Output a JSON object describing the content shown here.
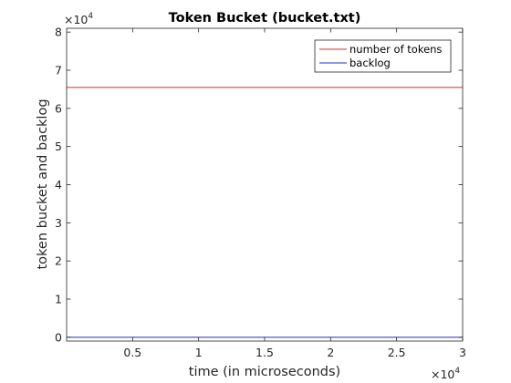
{
  "chart_data": {
    "type": "line",
    "title": "Token Bucket (bucket.txt)",
    "xlabel": "time (in microseconds)",
    "ylabel": "token bucket and backlog",
    "x_multiplier": {
      "base": "×10",
      "exp": "4"
    },
    "y_multiplier": {
      "base": "×10",
      "exp": "4"
    },
    "xlim": [
      0,
      30000
    ],
    "ylim": [
      -1000,
      81000
    ],
    "x_ticks": [
      5000,
      10000,
      15000,
      20000,
      25000,
      30000
    ],
    "x_tick_labels": [
      "0.5",
      "1",
      "1.5",
      "2",
      "2.5",
      "3"
    ],
    "y_ticks": [
      0,
      10000,
      20000,
      30000,
      40000,
      50000,
      60000,
      70000,
      80000
    ],
    "y_tick_labels": [
      "0",
      "1",
      "2",
      "3",
      "4",
      "5",
      "6",
      "7",
      "8"
    ],
    "grid": false,
    "legend_position": "top-right",
    "series": [
      {
        "name": "number of tokens",
        "color": "#d62728",
        "x": [
          0,
          30000
        ],
        "y": [
          65500,
          65500
        ]
      },
      {
        "name": "backlog",
        "color": "#1f2fbf",
        "x": [
          0,
          30000
        ],
        "y": [
          0,
          0
        ]
      }
    ]
  }
}
